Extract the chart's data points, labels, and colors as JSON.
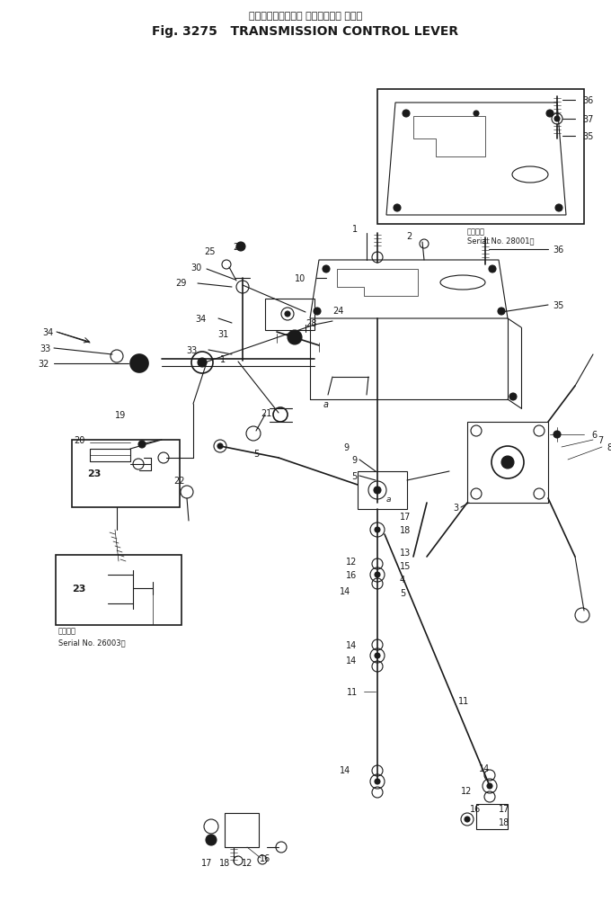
{
  "title_japanese": "トランスミッション コントロール レバー",
  "title_english": "Fig. 3275   TRANSMISSION CONTROL LEVER",
  "bg_color": "#ffffff",
  "line_color": "#1a1a1a",
  "fig_width": 6.8,
  "fig_height": 10.04,
  "dpi": 100,
  "serial_box1_text_line1": "適用番号",
  "serial_box1_text_line2": "Serial No. 28001～",
  "serial_box2_text_line1": "適用番号",
  "serial_box2_text_line2": "Serial No. 26003～"
}
